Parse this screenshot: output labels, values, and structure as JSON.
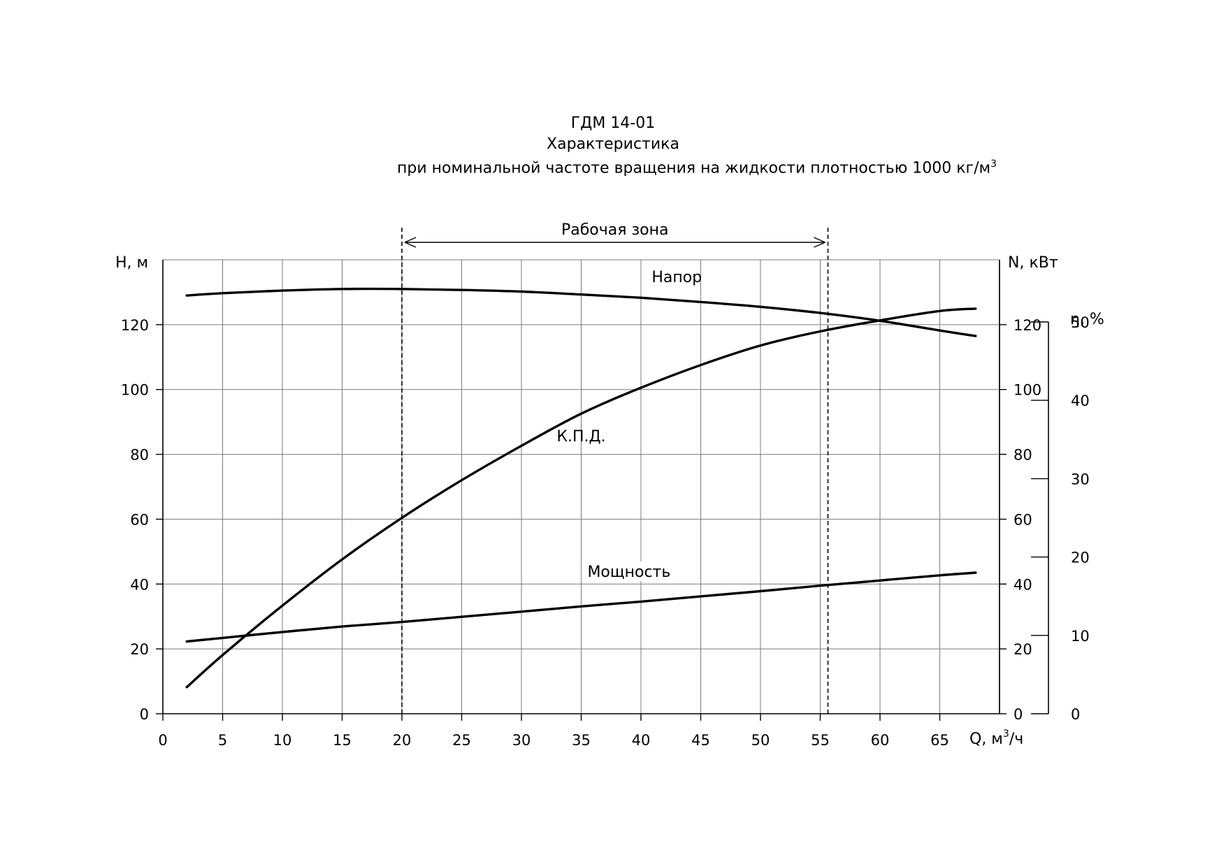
{
  "title_line1": "ГДМ 14-01",
  "title_line2": "Характеристика",
  "title_line3": "при номинальной  частоте  вращения  на жидкости  плотностью  1000  кг/м",
  "title_line3_sup": "3",
  "chart_data": {
    "type": "line",
    "x": [
      2,
      5,
      10,
      15,
      20,
      25,
      30,
      35,
      40,
      45,
      50,
      55,
      60,
      65,
      68
    ],
    "xlim": [
      0,
      70
    ],
    "xticks": [
      0,
      5,
      10,
      15,
      20,
      25,
      30,
      35,
      40,
      45,
      50,
      55,
      60,
      65
    ],
    "xlabel": "Q, м",
    "xlabel_sup": "3",
    "xlabel_tail": "/ч",
    "left_axis": {
      "label": "H, м",
      "ylim": [
        0,
        140
      ],
      "ticks": [
        0,
        20,
        40,
        60,
        80,
        100,
        120
      ]
    },
    "right_axis_n": {
      "label": "N, кВт",
      "ylim": [
        0,
        140
      ],
      "ticks": [
        0,
        20,
        40,
        60,
        80,
        100,
        120
      ]
    },
    "right_axis_eta": {
      "label": "η, %",
      "ylim": [
        0,
        60
      ],
      "ticks": [
        0,
        10,
        20,
        30,
        40,
        50
      ]
    },
    "grid": true,
    "series": [
      {
        "name": "Напор",
        "axis": "left",
        "values": [
          129,
          129.7,
          130.5,
          131,
          131,
          130.7,
          130.2,
          129.3,
          128.3,
          127,
          125.5,
          123.6,
          121.2,
          118.2,
          116.5
        ]
      },
      {
        "name": "К.П.Д.",
        "axis": "eta",
        "values": [
          3.4,
          7.5,
          13.8,
          19.7,
          25,
          29.8,
          34.2,
          38.3,
          41.6,
          44.5,
          47,
          48.8,
          50.2,
          51.4,
          51.7
        ]
      },
      {
        "name": "Мощность",
        "axis": "right",
        "values": [
          22.3,
          23.4,
          25.2,
          26.9,
          28.3,
          29.9,
          31.5,
          33.1,
          34.6,
          36.2,
          37.8,
          39.5,
          41.1,
          42.7,
          43.5
        ]
      }
    ],
    "working_zone": {
      "label": "Рабочая   зона",
      "from": 20,
      "to": 55
    }
  }
}
